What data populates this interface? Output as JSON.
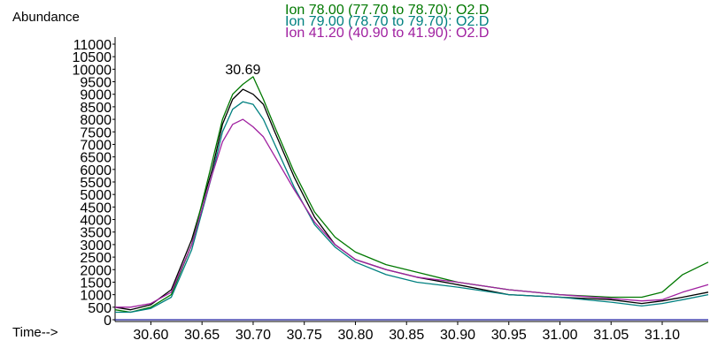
{
  "chart_data": {
    "type": "line",
    "ylabel": "Abundance",
    "xlabel": "Time-->",
    "xlim": [
      30.565,
      31.145
    ],
    "ylim": [
      0,
      11000
    ],
    "x_ticks": [
      "30.60",
      "30.65",
      "30.70",
      "30.75",
      "30.80",
      "30.85",
      "30.90",
      "30.95",
      "31.00",
      "31.05",
      "31.10"
    ],
    "y_ticks": [
      "0",
      "500",
      "1000",
      "1500",
      "2000",
      "2500",
      "3000",
      "3500",
      "4000",
      "4500",
      "5000",
      "5500",
      "6000",
      "6500",
      "7000",
      "7500",
      "8000",
      "8500",
      "9000",
      "9500",
      "10000",
      "10500",
      "11000"
    ],
    "peak_label": "30.69",
    "peak_x": 30.69,
    "legend": [
      {
        "text": "Ion  78.00 (77.70 to 78.70): O2.D",
        "color": "#007800"
      },
      {
        "text": "Ion  79.00 (78.70 to 79.70): O2.D",
        "color": "#008080"
      },
      {
        "text": "Ion  41.20 (40.90 to 41.90): O2.D",
        "color": "#a020a0"
      }
    ],
    "series": [
      {
        "color": "#000000",
        "x": [
          30.565,
          30.58,
          30.6,
          30.62,
          30.64,
          30.66,
          30.67,
          30.68,
          30.69,
          30.7,
          30.71,
          30.72,
          30.74,
          30.76,
          30.78,
          30.8,
          30.83,
          30.86,
          30.9,
          30.95,
          31.0,
          31.05,
          31.08,
          31.1,
          31.12,
          31.145
        ],
        "values": [
          500,
          400,
          600,
          1200,
          3200,
          6000,
          7800,
          8800,
          9200,
          9000,
          8600,
          7600,
          5700,
          4100,
          3000,
          2400,
          2000,
          1700,
          1400,
          1000,
          900,
          800,
          650,
          750,
          900,
          1100
        ]
      },
      {
        "color": "#007800",
        "x": [
          30.565,
          30.58,
          30.6,
          30.62,
          30.64,
          30.66,
          30.67,
          30.68,
          30.69,
          30.7,
          30.71,
          30.72,
          30.74,
          30.76,
          30.78,
          30.8,
          30.83,
          30.86,
          30.9,
          30.95,
          31.0,
          31.05,
          31.08,
          31.1,
          31.12,
          31.145
        ],
        "values": [
          400,
          300,
          500,
          1000,
          3000,
          6300,
          8000,
          9000,
          9400,
          9700,
          8800,
          7800,
          5900,
          4300,
          3300,
          2700,
          2200,
          1900,
          1500,
          1200,
          1000,
          900,
          900,
          1100,
          1800,
          2300
        ]
      },
      {
        "color": "#008080",
        "x": [
          30.565,
          30.58,
          30.6,
          30.62,
          30.64,
          30.66,
          30.67,
          30.68,
          30.69,
          30.7,
          30.71,
          30.72,
          30.74,
          30.76,
          30.78,
          30.8,
          30.83,
          30.86,
          30.9,
          30.95,
          31.0,
          31.05,
          31.08,
          31.1,
          31.12,
          31.145
        ],
        "values": [
          300,
          300,
          450,
          900,
          2800,
          5800,
          7500,
          8400,
          8700,
          8600,
          8000,
          7100,
          5300,
          3800,
          2900,
          2300,
          1800,
          1500,
          1300,
          1000,
          900,
          700,
          550,
          650,
          800,
          1000
        ]
      },
      {
        "color": "#a020a0",
        "x": [
          30.565,
          30.58,
          30.6,
          30.62,
          30.64,
          30.66,
          30.67,
          30.68,
          30.69,
          30.7,
          30.71,
          30.72,
          30.74,
          30.76,
          30.78,
          30.8,
          30.83,
          30.86,
          30.9,
          30.95,
          31.0,
          31.05,
          31.08,
          31.1,
          31.12,
          31.145
        ],
        "values": [
          500,
          500,
          650,
          1100,
          3000,
          5800,
          7100,
          7800,
          8000,
          7700,
          7300,
          6600,
          5200,
          3900,
          3000,
          2400,
          2000,
          1700,
          1500,
          1200,
          1000,
          850,
          750,
          800,
          1100,
          1400
        ]
      },
      {
        "color": "#2020a0",
        "x": [
          30.565,
          31.145
        ],
        "values": [
          0,
          0
        ]
      }
    ]
  }
}
